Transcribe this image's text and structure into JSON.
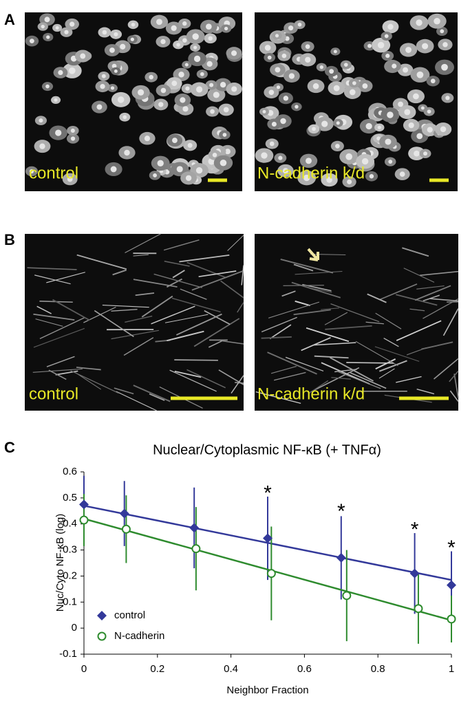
{
  "panels": {
    "A": {
      "letter": "A",
      "labels": [
        "control",
        "N-cadherin k/d"
      ]
    },
    "B": {
      "letter": "B",
      "labels": [
        "control",
        "N-cadherin k/d"
      ]
    },
    "C": {
      "letter": "C"
    }
  },
  "chart_data": {
    "type": "scatter",
    "title": "Nuclear/Cytoplasmic NF-κB (+ TNFα)",
    "x_label": "Neighbor Fraction",
    "y_label": "Nuc/Cyto NF-κB (log)",
    "xlim": [
      0,
      1
    ],
    "xticks": [
      0,
      0.2,
      0.4,
      0.6,
      0.8,
      1
    ],
    "ylim": [
      -0.1,
      0.6
    ],
    "yticks": [
      0.6,
      0.5,
      0.4,
      0.3,
      0.2,
      0.1,
      0,
      -0.1
    ],
    "series": [
      {
        "name": "control",
        "color": "#33399a",
        "marker": "diamond",
        "x": [
          0,
          0.11,
          0.3,
          0.5,
          0.7,
          0.9,
          1
        ],
        "values": [
          0.475,
          0.44,
          0.385,
          0.345,
          0.27,
          0.21,
          0.165
        ],
        "errors": [
          0.11,
          0.125,
          0.155,
          0.16,
          0.16,
          0.155,
          0.13
        ],
        "trend": [
          0.47,
          0.185
        ]
      },
      {
        "name": "N-cadherin",
        "color": "#2e8b2e",
        "marker": "circle",
        "x": [
          0,
          0.115,
          0.305,
          0.51,
          0.715,
          0.91,
          1
        ],
        "values": [
          0.415,
          0.38,
          0.305,
          0.21,
          0.125,
          0.075,
          0.035
        ],
        "errors": [
          0.1,
          0.13,
          0.16,
          0.18,
          0.175,
          0.135,
          0.09
        ],
        "trend": [
          0.42,
          0.03
        ]
      }
    ],
    "annotations": [
      {
        "text": "*",
        "x": 0.5,
        "y": 0.535
      },
      {
        "text": "*",
        "x": 0.7,
        "y": 0.465
      },
      {
        "text": "*",
        "x": 0.9,
        "y": 0.395
      },
      {
        "text": "*",
        "x": 1,
        "y": 0.325
      }
    ]
  }
}
